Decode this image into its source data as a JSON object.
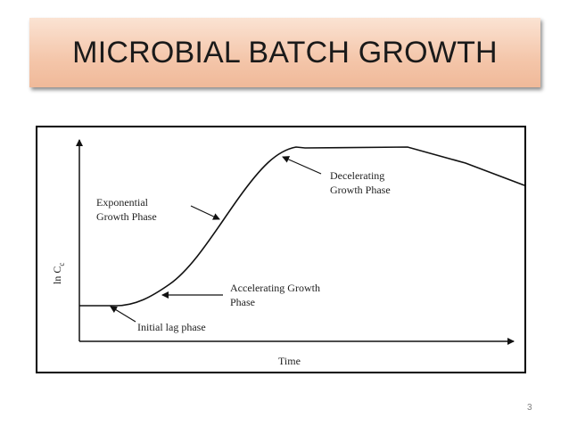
{
  "slide": {
    "title": "MICROBIAL BATCH GROWTH",
    "number": "3"
  },
  "diagram": {
    "x_axis_label": "Time",
    "y_axis_label_main": "ln C",
    "y_axis_label_sub": "c",
    "labels": {
      "exponential_line1": "Exponential",
      "exponential_line2": "Growth Phase",
      "decelerating_line1": "Decelerating",
      "decelerating_line2": "Growth Phase",
      "accelerating_line1": "Accelerating Growth",
      "accelerating_line2": "Phase",
      "lag": "Initial lag phase"
    }
  }
}
